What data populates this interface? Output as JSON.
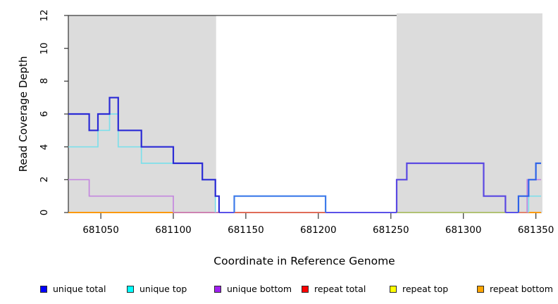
{
  "chart_data": {
    "type": "line",
    "subtype": "step",
    "title": "",
    "xlabel": "Coordinate in Reference Genome",
    "ylabel": "Read Coverage Depth",
    "xlim": [
      681027.6,
      681353.6
    ],
    "ylim": [
      0,
      12
    ],
    "x_ticks": [
      681050,
      681100,
      681150,
      681200,
      681250,
      681300,
      681350
    ],
    "y_ticks": [
      0,
      2,
      4,
      6,
      8,
      10,
      12
    ],
    "grid": false,
    "legend_position": "bottom",
    "axis_color": "#333333",
    "shaded_regions": [
      {
        "x0": 681027.6,
        "x1": 681129.5,
        "color": "#DCDCDC"
      },
      {
        "x0": 681254.0,
        "x1": 681354.5,
        "color": "#DCDCDC"
      }
    ],
    "series": [
      {
        "name": "repeat top",
        "width": 1.4,
        "subpaths": [
          {
            "color": "#FFFF00",
            "points": [
              [
                681027.6,
                0
              ],
              [
                681353.6,
                0
              ]
            ]
          }
        ]
      },
      {
        "name": "repeat total",
        "width": 1.4,
        "subpaths": [
          {
            "color": "#E04050",
            "points": [
              [
                681027.6,
                0
              ],
              [
                681353.6,
                0
              ]
            ]
          }
        ]
      },
      {
        "name": "repeat bottom",
        "width": 1.7,
        "subpaths": [
          {
            "color": "#FF9A00",
            "points": [
              [
                681027.6,
                0
              ],
              [
                681353.6,
                0
              ]
            ]
          }
        ]
      },
      {
        "name": "unique bottom",
        "width": 1.7,
        "subpaths": [
          {
            "color": "#C487DF",
            "points": [
              [
                681027.6,
                2
              ],
              [
                681042,
                2
              ],
              [
                681042,
                1
              ],
              [
                681100,
                1
              ],
              [
                681100,
                0
              ]
            ]
          },
          {
            "color": "#C487DF",
            "points": [
              [
                681254,
                0
              ],
              [
                681254,
                2
              ],
              [
                681261,
                2
              ],
              [
                681261,
                3
              ],
              [
                681314,
                3
              ],
              [
                681314,
                1
              ],
              [
                681329,
                1
              ],
              [
                681329,
                0
              ]
            ]
          },
          {
            "color": "#C487DF",
            "points": [
              [
                681344,
                0
              ],
              [
                681344,
                2
              ],
              [
                681353.6,
                2
              ]
            ]
          }
        ]
      },
      {
        "name": "unique top",
        "width": 1.7,
        "subpaths": [
          {
            "color": "#7EDFEA",
            "points": [
              [
                681027.6,
                4
              ],
              [
                681048,
                4
              ],
              [
                681048,
                5
              ],
              [
                681056,
                5
              ],
              [
                681056,
                6
              ],
              [
                681062,
                6
              ],
              [
                681062,
                4
              ],
              [
                681078,
                4
              ],
              [
                681078,
                3
              ],
              [
                681120,
                3
              ],
              [
                681120,
                2
              ],
              [
                681129,
                2
              ],
              [
                681129,
                0
              ]
            ]
          },
          {
            "color": "#7EDFEA",
            "points": [
              [
                681142,
                0
              ],
              [
                681142,
                1
              ],
              [
                681205,
                1
              ],
              [
                681205,
                0
              ]
            ]
          },
          {
            "color": "#7EDFEA",
            "points": [
              [
                681345,
                0
              ],
              [
                681345,
                1
              ],
              [
                681353.6,
                1
              ]
            ]
          }
        ]
      },
      {
        "name": "unique total",
        "width": 2.2,
        "subpaths": [
          {
            "color": "#2B2BD5",
            "points": [
              [
                681027.6,
                6
              ],
              [
                681042,
                6
              ],
              [
                681042,
                5
              ],
              [
                681048,
                5
              ],
              [
                681048,
                6
              ],
              [
                681056,
                6
              ],
              [
                681056,
                7
              ],
              [
                681062,
                7
              ],
              [
                681062,
                5
              ],
              [
                681078,
                5
              ],
              [
                681078,
                4
              ],
              [
                681100,
                4
              ],
              [
                681100,
                3
              ],
              [
                681120,
                3
              ],
              [
                681120,
                2
              ],
              [
                681129,
                2
              ],
              [
                681129,
                1
              ],
              [
                681131.5,
                1
              ],
              [
                681131.5,
                0
              ]
            ]
          },
          {
            "color": "#3E7BEA",
            "points": [
              [
                681142,
                0
              ],
              [
                681142,
                1
              ],
              [
                681205,
                1
              ],
              [
                681205,
                0
              ]
            ]
          },
          {
            "color": "#5A48E2",
            "points": [
              [
                681254,
                0
              ],
              [
                681254,
                2
              ],
              [
                681261,
                2
              ],
              [
                681261,
                3
              ],
              [
                681314,
                3
              ],
              [
                681314,
                1
              ],
              [
                681329,
                1
              ],
              [
                681329,
                0
              ]
            ]
          },
          {
            "color": "#2E63E8",
            "points": [
              [
                681338,
                0
              ],
              [
                681338,
                1
              ],
              [
                681345,
                1
              ],
              [
                681345,
                2
              ],
              [
                681350,
                2
              ],
              [
                681350,
                3
              ],
              [
                681353.6,
                3
              ]
            ]
          }
        ]
      }
    ],
    "baseline_overlays": [
      {
        "x0": 681100,
        "x1": 681131.5,
        "color": "#C77FC9",
        "width": 1.7
      },
      {
        "x0": 681131.5,
        "x1": 681142,
        "color": "#5B51E8",
        "width": 1.9
      },
      {
        "x0": 681142,
        "x1": 681205,
        "color": "#D85E6E",
        "width": 1.5
      },
      {
        "x0": 681205,
        "x1": 681254,
        "color": "#5B51E8",
        "width": 1.9
      },
      {
        "x0": 681254,
        "x1": 681329,
        "color": "#99D093",
        "width": 1.5
      },
      {
        "x0": 681329,
        "x1": 681338,
        "color": "#5B51E8",
        "width": 1.9
      },
      {
        "x0": 681338,
        "x1": 681345,
        "color": "#D87C8C",
        "width": 1.5
      }
    ],
    "legend": [
      {
        "label": "unique total",
        "color": "#0000FF"
      },
      {
        "label": "unique top",
        "color": "#00FFFF"
      },
      {
        "label": "unique bottom",
        "color": "#A020F0"
      },
      {
        "label": "repeat total",
        "color": "#FF0000"
      },
      {
        "label": "repeat top",
        "color": "#FFFF00"
      },
      {
        "label": "repeat bottom",
        "color": "#FFA500"
      }
    ]
  }
}
